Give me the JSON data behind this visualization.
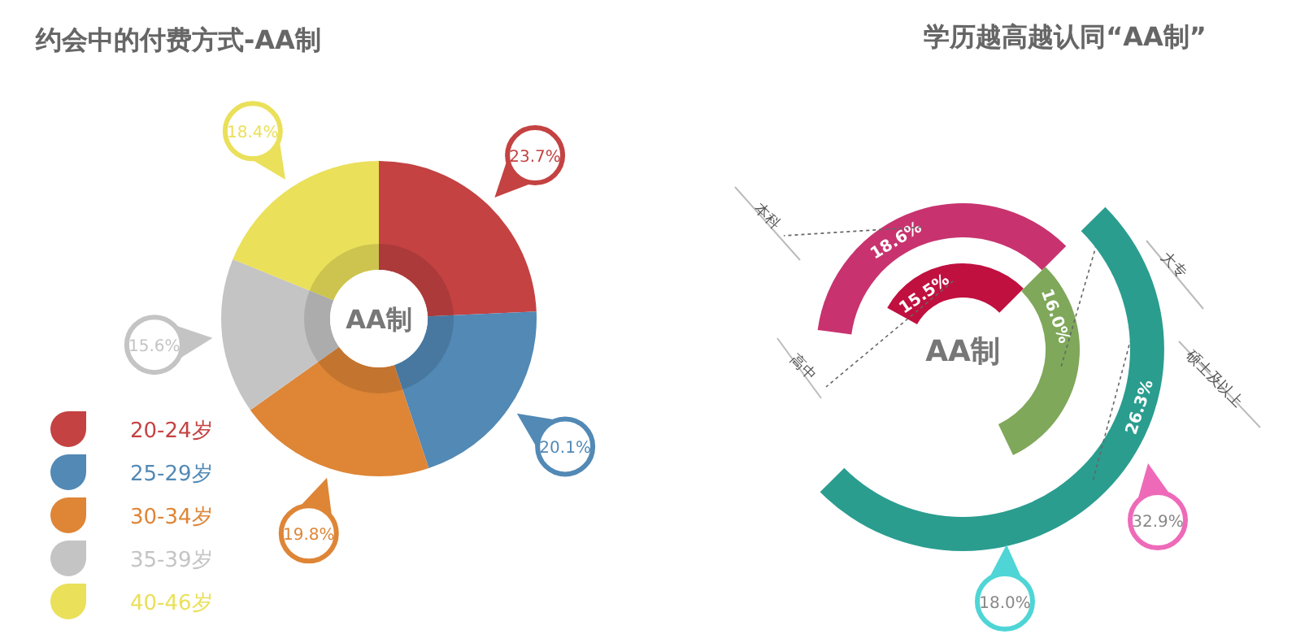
{
  "chart_data": [
    {
      "type": "donut",
      "title": "约会中的付费方式-AA制",
      "categories": [
        "20-24岁",
        "25-29岁",
        "30-34岁",
        "35-39岁",
        "40-46岁"
      ],
      "values": [
        23.7,
        20.1,
        19.8,
        15.6,
        18.4
      ],
      "value_labels": [
        "23.7%",
        "20.1%",
        "19.8%",
        "15.6%",
        "18.4%"
      ],
      "colors": [
        "#c44242",
        "#5289b5",
        "#de8536",
        "#c4c4c4",
        "#eae05a"
      ],
      "legend": "bottom left",
      "annotations": [
        "AA制"
      ]
    },
    {
      "type": "other",
      "title": "学历越高越认同“AA制”",
      "categories": [
        "本科",
        "高中",
        "大专",
        "硕士及以上"
      ],
      "values": [
        18.6,
        15.5,
        16.0,
        26.3
      ],
      "value_labels": [
        "18.6%",
        "15.5%",
        "16.0%",
        "26.3%"
      ],
      "colors": [
        "#c8336f",
        "#c0103f",
        "#7fa85a",
        "#2a9d8f"
      ],
      "annotations": [
        "AA制",
        "32.9%",
        "18.0%"
      ]
    }
  ]
}
